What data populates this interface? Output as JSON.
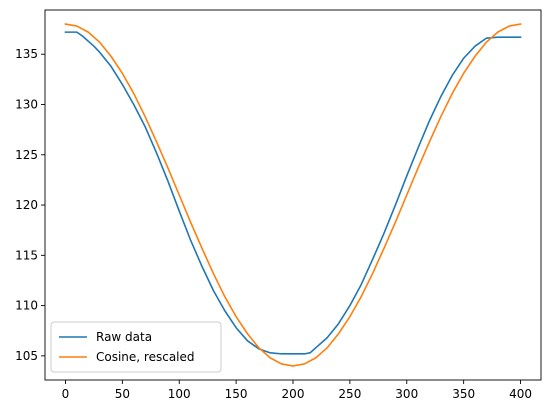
{
  "chart_data": {
    "type": "line",
    "title": "",
    "xlabel": "",
    "ylabel": "",
    "xlim": [
      -18,
      418
    ],
    "ylim": [
      102.6,
      139.4
    ],
    "x_ticks": [
      0,
      50,
      100,
      150,
      200,
      250,
      300,
      350,
      400
    ],
    "y_ticks": [
      105,
      110,
      115,
      120,
      125,
      130,
      135
    ],
    "grid": false,
    "legend": {
      "placement": "lower-left"
    },
    "series": [
      {
        "name": "Raw data",
        "color": "#1f77b4",
        "x": [
          0,
          5,
          10,
          15,
          20,
          25,
          30,
          40,
          50,
          60,
          70,
          80,
          90,
          100,
          110,
          120,
          130,
          140,
          150,
          160,
          170,
          180,
          190,
          200,
          210,
          215,
          220,
          230,
          240,
          250,
          260,
          270,
          280,
          290,
          300,
          310,
          320,
          330,
          340,
          350,
          360,
          370,
          380,
          390,
          395,
          400
        ],
        "values": [
          137.2,
          137.2,
          137.2,
          136.8,
          136.3,
          135.8,
          135.2,
          133.8,
          132.0,
          130.0,
          127.8,
          125.2,
          122.4,
          119.4,
          116.5,
          113.9,
          111.5,
          109.5,
          107.8,
          106.5,
          105.7,
          105.3,
          105.2,
          105.2,
          105.2,
          105.3,
          105.8,
          106.8,
          108.2,
          110.0,
          112.1,
          114.6,
          117.2,
          120.0,
          122.9,
          125.7,
          128.4,
          130.8,
          132.9,
          134.6,
          135.8,
          136.6,
          136.7,
          136.7,
          136.7,
          136.7
        ]
      },
      {
        "name": "Cosine, rescaled",
        "color": "#ff7f0e",
        "x": [
          0,
          10,
          20,
          30,
          40,
          50,
          60,
          70,
          80,
          90,
          100,
          110,
          120,
          130,
          140,
          150,
          160,
          170,
          180,
          190,
          200,
          210,
          220,
          230,
          240,
          250,
          260,
          270,
          280,
          290,
          300,
          310,
          320,
          330,
          340,
          350,
          360,
          370,
          380,
          390,
          400
        ],
        "values": [
          138.0,
          137.8,
          137.2,
          136.2,
          134.8,
          133.1,
          131.1,
          128.8,
          126.3,
          123.7,
          121.0,
          118.3,
          115.7,
          113.2,
          110.9,
          108.9,
          107.2,
          105.8,
          104.8,
          104.2,
          104.0,
          104.2,
          104.8,
          105.8,
          107.2,
          108.9,
          110.9,
          113.2,
          115.7,
          118.3,
          121.0,
          123.7,
          126.3,
          128.8,
          131.1,
          133.1,
          134.8,
          136.2,
          137.2,
          137.8,
          138.0
        ]
      }
    ]
  }
}
